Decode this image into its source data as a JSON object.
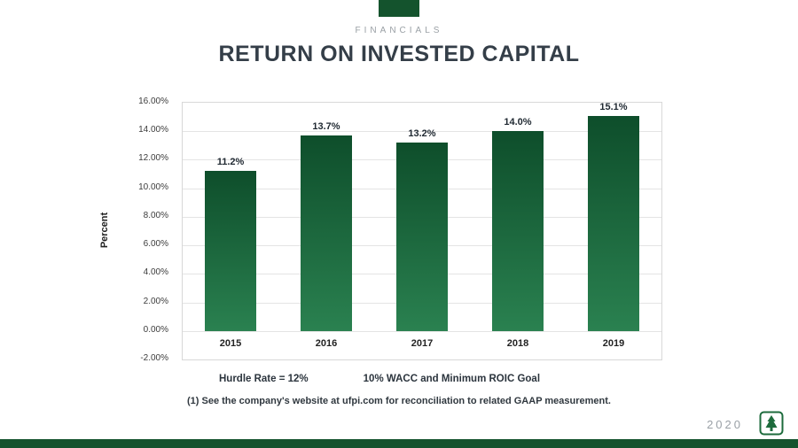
{
  "slide": {
    "kicker": "FINANCIALS",
    "title": "RETURN ON INVESTED CAPITAL",
    "legend_left": "Hurdle Rate = 12%",
    "legend_right": "10% WACC and Minimum ROIC Goal",
    "footnote": "(1) See the company's website at ufpi.com for reconciliation to related GAAP measurement.",
    "year_badge": "2020",
    "logo_icon": "evergreen-tree-in-square-icon"
  },
  "colors": {
    "brand_green": "#14532d",
    "bar_top": "#0e4e2b",
    "bar_bottom": "#2a8150",
    "title_text": "#343e48",
    "muted_text": "#9aa0a5"
  },
  "chart_data": {
    "type": "bar",
    "title": "RETURN ON INVESTED CAPITAL",
    "categories": [
      "2015",
      "2016",
      "2017",
      "2018",
      "2019"
    ],
    "values": [
      11.2,
      13.7,
      13.2,
      14.0,
      15.1
    ],
    "labels": [
      "11.2%",
      "13.7%",
      "13.2%",
      "14.0%",
      "15.1%"
    ],
    "xlabel": "",
    "ylabel": "Percent",
    "ylim": [
      -2,
      16
    ],
    "ytick_step": 2,
    "yticks": [
      "16.00%",
      "14.00%",
      "12.00%",
      "10.00%",
      "8.00%",
      "6.00%",
      "4.00%",
      "2.00%",
      "0.00%",
      "-2.00%"
    ],
    "grid": true,
    "legend_position": "none"
  }
}
